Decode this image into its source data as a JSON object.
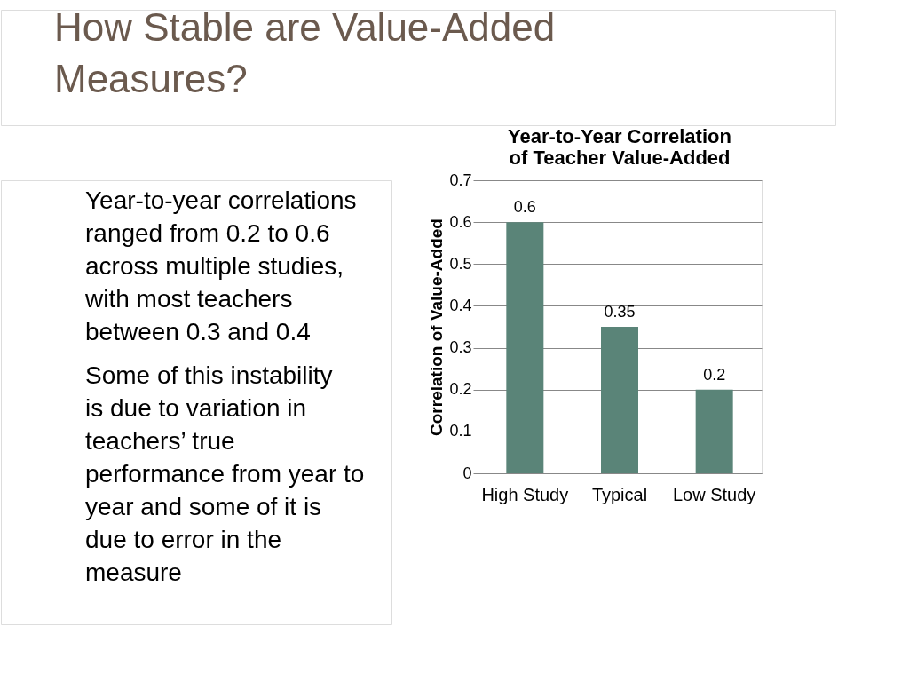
{
  "chart_data": {
    "type": "bar",
    "title": "Year-to-Year Correlation of Teacher Value-Added",
    "ylabel": "Correlation of Value-Added",
    "categories": [
      "High Study",
      "Typical",
      "Low Study"
    ],
    "values": [
      0.6,
      0.35,
      0.2
    ],
    "color": "#5a8478",
    "ylim": [
      0,
      0.7
    ],
    "yticks": [
      0,
      0.1,
      0.2,
      0.3,
      0.4,
      0.5,
      0.6,
      0.7
    ],
    "grid": "y",
    "data_labels": true,
    "annotations": [
      "How Stable are Value-Added Measures?",
      "Year-to-year correlations ranged from 0.2 to 0.6 across multiple studies, with most teachers between 0.3 and 0.4",
      "Some of this instability is due to variation in teachers’ true performance from year to year and some of it is due to error in the measure"
    ]
  }
}
